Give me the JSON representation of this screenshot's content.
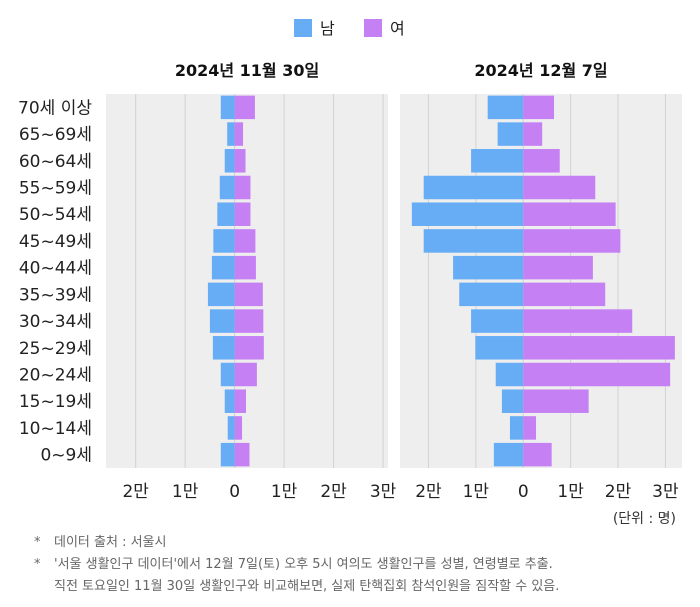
{
  "legend": [
    {
      "label": "남",
      "color": "#66adf5"
    },
    {
      "label": "여",
      "color": "#c581f3"
    }
  ],
  "age_labels": [
    "70세 이상",
    "65~69세",
    "60~64세",
    "55~59세",
    "50~54세",
    "45~49세",
    "40~44세",
    "35~39세",
    "30~34세",
    "25~29세",
    "20~24세",
    "15~19세",
    "10~14세",
    "0~9세"
  ],
  "x_tick_labels": [
    "2만",
    "1만",
    "0",
    "1만",
    "2만",
    "3만"
  ],
  "unit_label": "(단위 : 명)",
  "notes": {
    "star": "*",
    "source": "데이터 출처 : 서울시",
    "desc_line1": "'서울 생활인구 데이터'에서 12월 7일(토) 오후 5시 여의도 생활인구를 성별, 연령별로 추출.",
    "desc_line2": "직전 토요일인 11월 30일 생활인구와 비교해보면, 실제 탄핵집회 참석인원을 짐작할 수 있음."
  },
  "colors": {
    "male": "#66adf5",
    "female": "#c581f3",
    "plot_bg": "#eeeeee",
    "grid": "#d2d2d2"
  },
  "chart_data": [
    {
      "type": "bar",
      "title": "2024년 11월 30일",
      "categories": [
        "70세 이상",
        "65~69세",
        "60~64세",
        "55~59세",
        "50~54세",
        "45~49세",
        "40~44세",
        "35~39세",
        "30~34세",
        "25~29세",
        "20~24세",
        "15~19세",
        "10~14세",
        "0~9세"
      ],
      "series": [
        {
          "name": "남",
          "values": [
            -2800,
            -1500,
            -2000,
            -3000,
            -3500,
            -4300,
            -4600,
            -5400,
            -5000,
            -4400,
            -2800,
            -2000,
            -1400,
            -2800
          ]
        },
        {
          "name": "여",
          "values": [
            4100,
            1700,
            2200,
            3200,
            3200,
            4200,
            4300,
            5700,
            5800,
            5900,
            4500,
            2300,
            1500,
            3000
          ]
        }
      ],
      "xlim": [
        -26000,
        31000
      ],
      "x_ticks": [
        -20000,
        -10000,
        0,
        10000,
        20000,
        30000
      ],
      "legend": "top-center",
      "grid": true
    },
    {
      "type": "bar",
      "title": "2024년 12월 7일",
      "categories": [
        "70세 이상",
        "65~69세",
        "60~64세",
        "55~59세",
        "50~54세",
        "45~49세",
        "40~44세",
        "35~39세",
        "30~34세",
        "25~29세",
        "20~24세",
        "15~19세",
        "10~14세",
        "0~9세"
      ],
      "series": [
        {
          "name": "남",
          "values": [
            -7500,
            -5400,
            -11000,
            -21000,
            -23500,
            -21000,
            -14800,
            -13500,
            -11000,
            -10100,
            -5800,
            -4500,
            -2800,
            -6200
          ]
        },
        {
          "name": "여",
          "values": [
            6500,
            4000,
            7700,
            15200,
            19500,
            20500,
            14700,
            17300,
            23000,
            32000,
            31000,
            13800,
            2700,
            6000
          ]
        }
      ],
      "xlim": [
        -26000,
        33500
      ],
      "x_ticks": [
        -20000,
        -10000,
        0,
        10000,
        20000,
        30000
      ],
      "legend": "top-center",
      "grid": true
    }
  ]
}
